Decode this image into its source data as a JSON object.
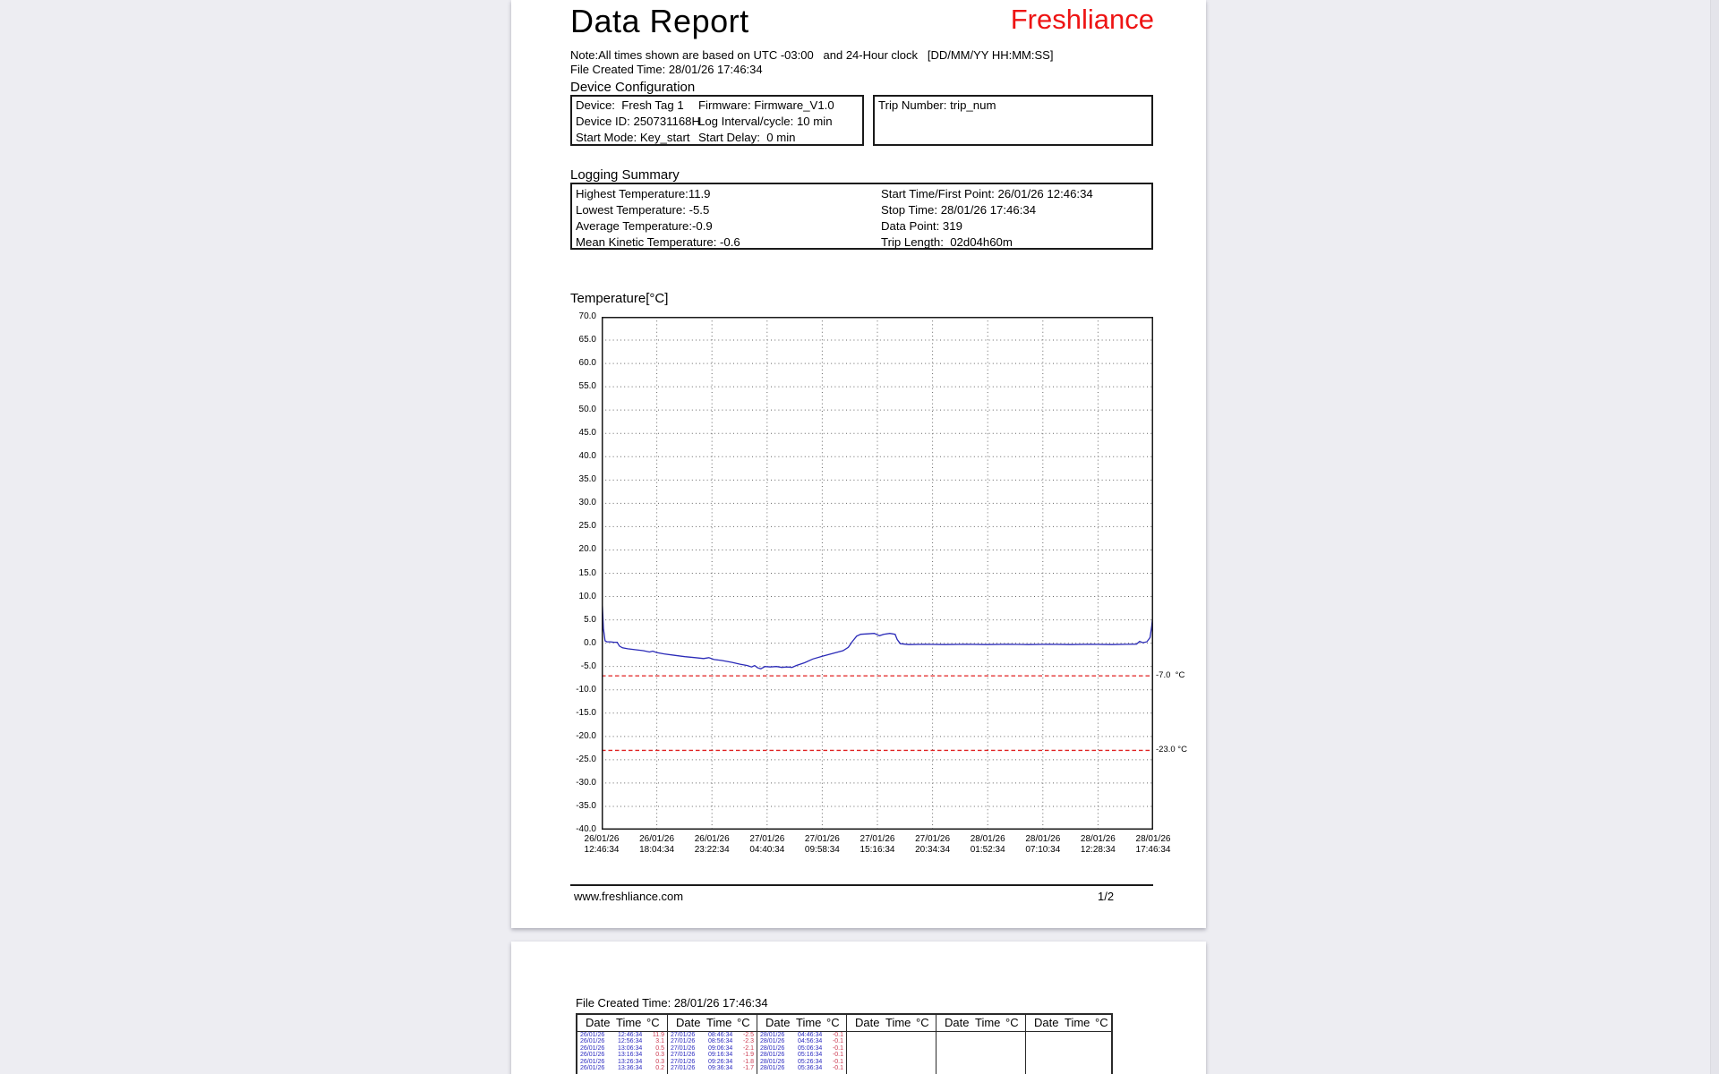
{
  "viewer": {
    "background": "#ededf2"
  },
  "accent_red": "#ee1414",
  "page1": {
    "title": "Data Report",
    "brand": "Freshliance",
    "note": "Note:All times shown are based on UTC -03:00   and 24-Hour clock   [DD/MM/YY HH:MM:SS]",
    "file_created": "File Created Time: 28/01/26 17:46:34",
    "device_config": {
      "heading": "Device Configuration",
      "rows": [
        [
          "Device:  Fresh Tag 1",
          "Firmware: Firmware_V1.0"
        ],
        [
          "Device ID: 250731168H",
          "Log Interval/cycle: 10 min"
        ],
        [
          "Start Mode: Key_start",
          "Start Delay:  0 min"
        ]
      ],
      "trip_number": "Trip Number: trip_num"
    },
    "logging_summary": {
      "heading": "Logging Summary",
      "left": [
        "Highest Temperature:11.9",
        "Lowest Temperature: -5.5",
        "Average Temperature:-0.9",
        "Mean Kinetic Temperature: -0.6"
      ],
      "right": [
        "Start Time/First Point: 26/01/26 12:46:34",
        "Stop Time: 28/01/26 17:46:34",
        "Data Point: 319",
        "Trip Length:  02d04h60m"
      ]
    },
    "footer": {
      "url": "www.freshliance.com",
      "page": "1/2"
    }
  },
  "page2": {
    "file_created": "File Created Time: 28/01/26 17:46:34",
    "table": {
      "header": [
        "Date",
        "Time",
        "°C"
      ],
      "date_time_color": "#2b2bc0",
      "temp_color": "#cc3a50",
      "groups": [
        [
          [
            "26/01/26",
            "12:46:34",
            "11.9"
          ],
          [
            "26/01/26",
            "12:56:34",
            "3.1"
          ],
          [
            "26/01/26",
            "13:06:34",
            "0.5"
          ],
          [
            "26/01/26",
            "13:16:34",
            "0.3"
          ],
          [
            "26/01/26",
            "13:26:34",
            "0.3"
          ],
          [
            "26/01/26",
            "13:36:34",
            "0.2"
          ]
        ],
        [
          [
            "27/01/26",
            "08:46:34",
            "-2.5"
          ],
          [
            "27/01/26",
            "08:56:34",
            "-2.3"
          ],
          [
            "27/01/26",
            "09:06:34",
            "-2.1"
          ],
          [
            "27/01/26",
            "09:16:34",
            "-1.9"
          ],
          [
            "27/01/26",
            "09:26:34",
            "-1.8"
          ],
          [
            "27/01/26",
            "09:36:34",
            "-1.7"
          ]
        ],
        [
          [
            "28/01/26",
            "04:46:34",
            "-0.1"
          ],
          [
            "28/01/26",
            "04:56:34",
            "-0.1"
          ],
          [
            "28/01/26",
            "05:06:34",
            "-0.1"
          ],
          [
            "28/01/26",
            "05:16:34",
            "-0.1"
          ],
          [
            "28/01/26",
            "05:26:34",
            "-0.1"
          ],
          [
            "28/01/26",
            "05:36:34",
            "-0.1"
          ]
        ],
        [],
        [],
        []
      ]
    }
  },
  "chart_data": {
    "type": "line",
    "title": "Temperature[°C]",
    "ylabel": "Temperature (°C)",
    "ylim": [
      -40,
      70
    ],
    "y_tick_step": 5,
    "y_tick_labels": [
      "70.0",
      "65.0",
      "60.0",
      "55.0",
      "50.0",
      "45.0",
      "40.0",
      "35.0",
      "30.0",
      "25.0",
      "20.0",
      "15.0",
      "10.0",
      "5.0",
      "0.0",
      "-5.0",
      "-10.0",
      "-15.0",
      "-20.0",
      "-25.0",
      "-30.0",
      "-35.0",
      "-40.0"
    ],
    "x_hours_range": [
      0,
      53
    ],
    "x_tick_labels": [
      [
        "26/01/26",
        "12:46:34"
      ],
      [
        "26/01/26",
        "18:04:34"
      ],
      [
        "26/01/26",
        "23:22:34"
      ],
      [
        "27/01/26",
        "04:40:34"
      ],
      [
        "27/01/26",
        "09:58:34"
      ],
      [
        "27/01/26",
        "15:16:34"
      ],
      [
        "27/01/26",
        "20:34:34"
      ],
      [
        "28/01/26",
        "01:52:34"
      ],
      [
        "28/01/26",
        "07:10:34"
      ],
      [
        "28/01/26",
        "12:28:34"
      ],
      [
        "28/01/26",
        "17:46:34"
      ]
    ],
    "grid": "dotted",
    "legend": "none",
    "line_color": "#2a2ab8",
    "threshold_color": "#e02020",
    "thresholds": [
      {
        "value": -7.0,
        "label": "-7.0  °C"
      },
      {
        "value": -23.0,
        "label": "-23.0 °C"
      }
    ],
    "series": [
      {
        "name": "Temperature",
        "points": [
          [
            0,
            11.9
          ],
          [
            0.17,
            3.1
          ],
          [
            0.33,
            0.5
          ],
          [
            0.5,
            0.3
          ],
          [
            0.83,
            0.3
          ],
          [
            1.2,
            0.2
          ],
          [
            1.5,
            0.2
          ],
          [
            1.7,
            -0.6
          ],
          [
            2.0,
            -1.0
          ],
          [
            2.5,
            -1.2
          ],
          [
            3.2,
            -1.4
          ],
          [
            4.0,
            -1.6
          ],
          [
            4.6,
            -1.9
          ],
          [
            4.9,
            -1.7
          ],
          [
            5.3,
            -2.0
          ],
          [
            6.0,
            -2.3
          ],
          [
            7.0,
            -2.6
          ],
          [
            8.0,
            -2.9
          ],
          [
            9.0,
            -3.1
          ],
          [
            9.8,
            -3.3
          ],
          [
            10.3,
            -3.1
          ],
          [
            10.8,
            -3.5
          ],
          [
            11.5,
            -3.7
          ],
          [
            12.5,
            -4.1
          ],
          [
            13.3,
            -4.5
          ],
          [
            14.0,
            -4.8
          ],
          [
            14.4,
            -5.1
          ],
          [
            14.7,
            -4.8
          ],
          [
            15.0,
            -5.3
          ],
          [
            15.3,
            -5.5
          ],
          [
            15.7,
            -5.0
          ],
          [
            16.2,
            -5.1
          ],
          [
            16.8,
            -5.0
          ],
          [
            17.3,
            -5.2
          ],
          [
            17.8,
            -5.1
          ],
          [
            18.3,
            -5.2
          ],
          [
            18.7,
            -4.8
          ],
          [
            19.5,
            -4.2
          ],
          [
            20.3,
            -3.4
          ],
          [
            21.2,
            -2.8
          ],
          [
            22.2,
            -2.2
          ],
          [
            23.2,
            -1.6
          ],
          [
            23.7,
            -0.9
          ],
          [
            24.1,
            0.4
          ],
          [
            24.5,
            1.5
          ],
          [
            24.9,
            1.9
          ],
          [
            25.6,
            2.0
          ],
          [
            26.2,
            2.1
          ],
          [
            26.7,
            1.6
          ],
          [
            27.1,
            1.9
          ],
          [
            27.7,
            2.1
          ],
          [
            28.2,
            1.9
          ],
          [
            28.4,
            0.8
          ],
          [
            28.7,
            -0.1
          ],
          [
            29.5,
            -0.3
          ],
          [
            31,
            -0.25
          ],
          [
            33,
            -0.3
          ],
          [
            35,
            -0.25
          ],
          [
            37,
            -0.3
          ],
          [
            39,
            -0.25
          ],
          [
            41,
            -0.3
          ],
          [
            43,
            -0.25
          ],
          [
            45,
            -0.3
          ],
          [
            47,
            -0.25
          ],
          [
            49,
            -0.3
          ],
          [
            50.5,
            -0.25
          ],
          [
            51.4,
            -0.2
          ],
          [
            51.7,
            0.4
          ],
          [
            52.0,
            0.1
          ],
          [
            52.4,
            0.3
          ],
          [
            52.7,
            1.2
          ],
          [
            52.85,
            3.5
          ],
          [
            53,
            6.8
          ]
        ]
      }
    ]
  }
}
